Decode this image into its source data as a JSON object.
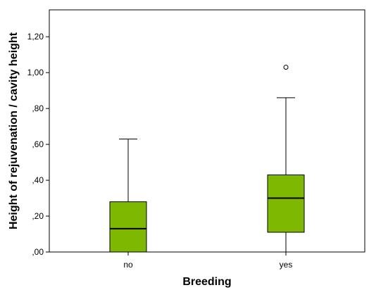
{
  "chart_data": {
    "type": "boxplot",
    "xlabel": "Breeding",
    "ylabel": "Height of rejuvenation / cavity height",
    "ylim": [
      0,
      1.35
    ],
    "yticks": [
      0,
      0.2,
      0.4,
      0.6,
      0.8,
      1.0,
      1.2
    ],
    "ytick_labels": [
      ",00",
      ",20",
      ",40",
      ",60",
      ",80",
      "1,00",
      "1,20"
    ],
    "categories": [
      "no",
      "yes"
    ],
    "boxes": [
      {
        "category": "no",
        "whisker_low": 0.0,
        "q1": 0.0,
        "median": 0.13,
        "q3": 0.28,
        "whisker_high": 0.63,
        "outliers": []
      },
      {
        "category": "yes",
        "whisker_low": 0.0,
        "q1": 0.11,
        "median": 0.3,
        "q3": 0.43,
        "whisker_high": 0.86,
        "outliers": [
          1.03
        ]
      }
    ],
    "box_color": "#7fb800",
    "grid": false,
    "legend": "none"
  }
}
